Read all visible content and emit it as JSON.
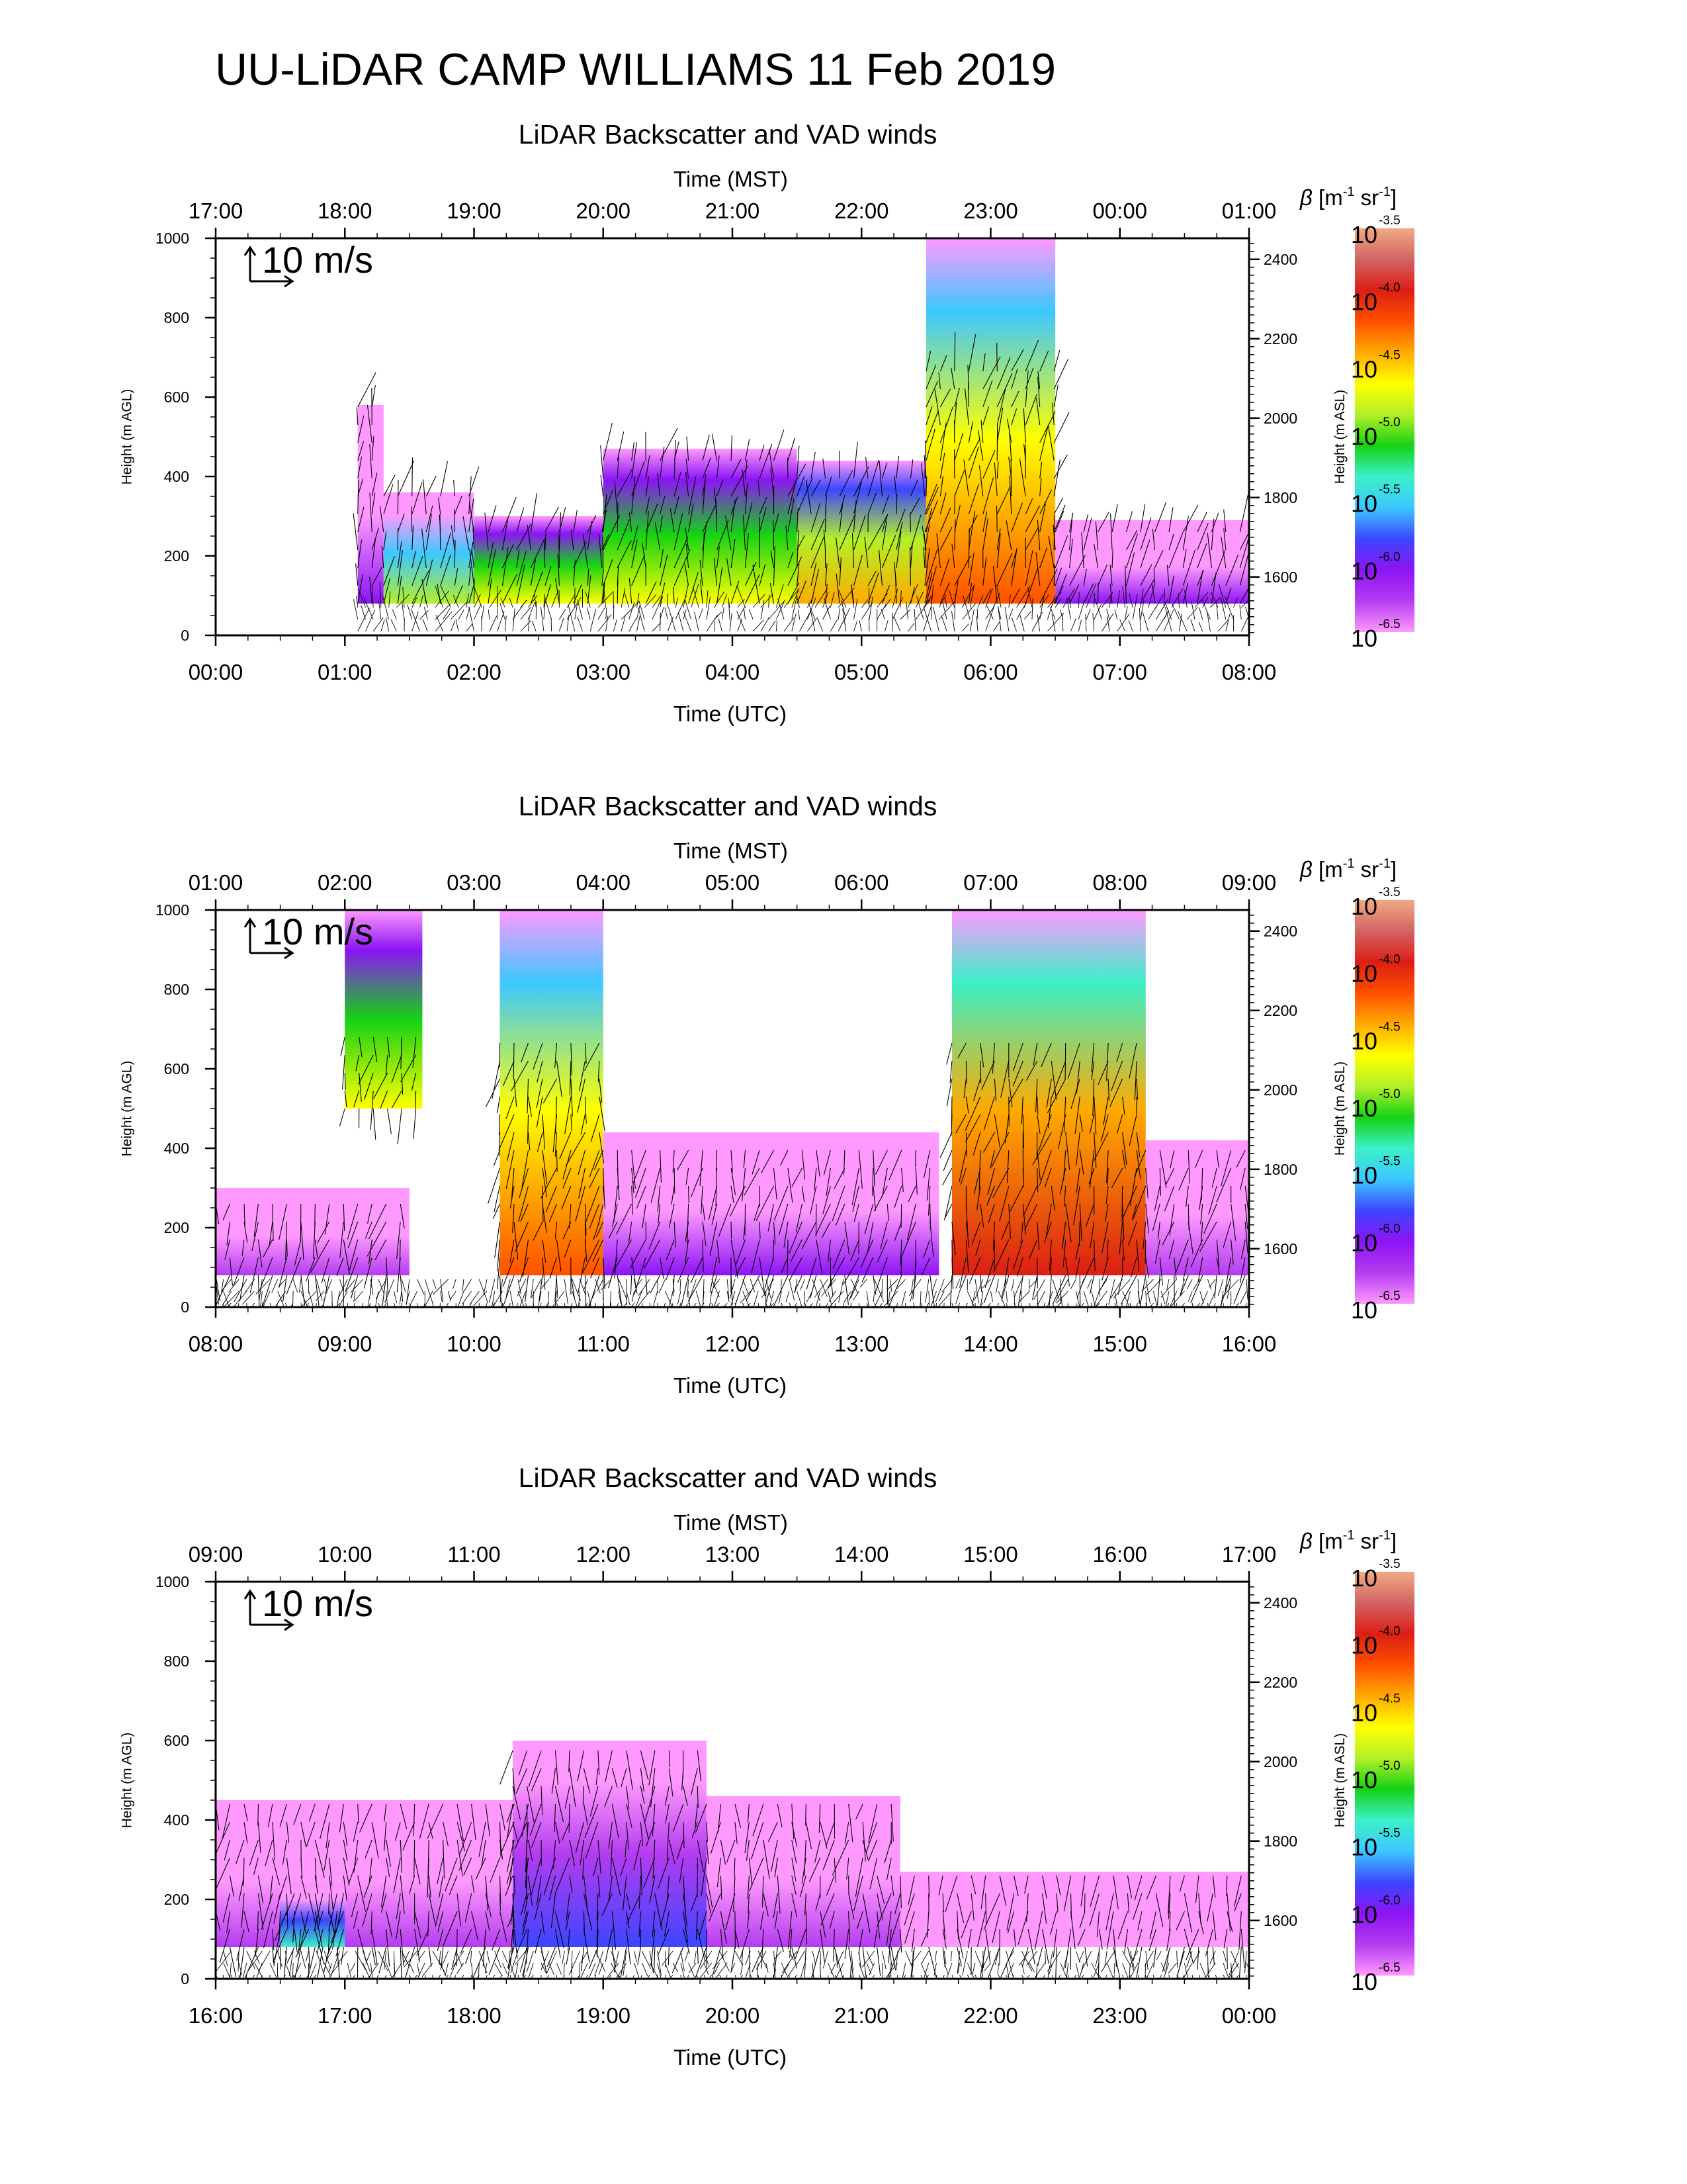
{
  "main_title": "UU-LiDAR CAMP WILLIAMS 11 Feb 2019",
  "colors": {
    "scale": [
      "#ff99ff",
      "#b43cf0",
      "#8c14f5",
      "#3c46ff",
      "#3cc8ff",
      "#3cf0c8",
      "#14d214",
      "#b4f028",
      "#ffff00",
      "#ffaa00",
      "#ff5000",
      "#dc1e14",
      "#d26464",
      "#f0aa82"
    ],
    "arrows": "#000000",
    "frame": "#000000"
  },
  "colorbar": {
    "label_beta": "β",
    "label_units": "[m",
    "exp_m": "-1",
    "label_sr": " sr",
    "exp_sr": "-1",
    "label_close": "]",
    "base": "10",
    "exponents": [
      "-3.5",
      "-4.0",
      "-4.5",
      "-5.0",
      "-5.5",
      "-6.0",
      "-6.5"
    ]
  },
  "panels": [
    {
      "title": "LiDAR Backscatter and VAD winds",
      "top_axis_label": "Time (MST)",
      "bottom_axis_label": "Time (UTC)",
      "left_axis_label": "Height (m AGL)",
      "right_axis_label": "Height (m ASL)",
      "ref_vector_label": "10 m/s",
      "top_ticks": [
        "17:00",
        "18:00",
        "19:00",
        "20:00",
        "21:00",
        "22:00",
        "23:00",
        "00:00",
        "01:00"
      ],
      "bottom_ticks": [
        "00:00",
        "01:00",
        "02:00",
        "03:00",
        "04:00",
        "05:00",
        "06:00",
        "07:00",
        "08:00"
      ],
      "left_ticks": [
        "0",
        "200",
        "400",
        "600",
        "800",
        "1000"
      ],
      "right_ticks": [
        "1600",
        "1800",
        "2000",
        "2200",
        "2400"
      ]
    },
    {
      "title": "LiDAR Backscatter and VAD winds",
      "top_axis_label": "Time (MST)",
      "bottom_axis_label": "Time (UTC)",
      "left_axis_label": "Height (m AGL)",
      "right_axis_label": "Height (m ASL)",
      "ref_vector_label": "10 m/s",
      "top_ticks": [
        "01:00",
        "02:00",
        "03:00",
        "04:00",
        "05:00",
        "06:00",
        "07:00",
        "08:00",
        "09:00"
      ],
      "bottom_ticks": [
        "08:00",
        "09:00",
        "10:00",
        "11:00",
        "12:00",
        "13:00",
        "14:00",
        "15:00",
        "16:00"
      ],
      "left_ticks": [
        "0",
        "200",
        "400",
        "600",
        "800",
        "1000"
      ],
      "right_ticks": [
        "1600",
        "1800",
        "2000",
        "2200",
        "2400"
      ]
    },
    {
      "title": "LiDAR Backscatter and VAD winds",
      "top_axis_label": "Time (MST)",
      "bottom_axis_label": "Time (UTC)",
      "left_axis_label": "Height (m AGL)",
      "right_axis_label": "Height (m ASL)",
      "ref_vector_label": "10 m/s",
      "top_ticks": [
        "09:00",
        "10:00",
        "11:00",
        "12:00",
        "13:00",
        "14:00",
        "15:00",
        "16:00",
        "17:00"
      ],
      "bottom_ticks": [
        "16:00",
        "17:00",
        "18:00",
        "19:00",
        "20:00",
        "21:00",
        "22:00",
        "23:00",
        "00:00"
      ],
      "left_ticks": [
        "0",
        "200",
        "400",
        "600",
        "800",
        "1000"
      ],
      "right_ticks": [
        "1600",
        "1800",
        "2000",
        "2200",
        "2400"
      ]
    }
  ],
  "chart_data": [
    {
      "type": "heatmap",
      "title": "LiDAR Backscatter and VAD winds",
      "xlabel": "Time (UTC)",
      "xlabel_top": "Time (MST)",
      "ylabel": "Height (m AGL)",
      "ylabel_right": "Height (m ASL)",
      "x_range_utc_hours": [
        0,
        8
      ],
      "ylim": [
        0,
        1000
      ],
      "ylim_right": [
        1453,
        2453
      ],
      "colorbar_log10_range": [
        -6.5,
        -3.5
      ],
      "layers": [
        {
          "x_start": 1.1,
          "x_end": 1.3,
          "y0": 80,
          "y1": 580,
          "level": -6.0
        },
        {
          "x_start": 1.3,
          "x_end": 2.0,
          "y0": 80,
          "y1": 360,
          "level": -5.0
        },
        {
          "x_start": 2.0,
          "x_end": 3.0,
          "y0": 80,
          "y1": 300,
          "level": -4.7
        },
        {
          "x_start": 3.0,
          "x_end": 4.5,
          "y0": 80,
          "y1": 470,
          "level": -4.6
        },
        {
          "x_start": 4.5,
          "x_end": 5.5,
          "y0": 80,
          "y1": 440,
          "level": -4.5
        },
        {
          "x_start": 5.5,
          "x_end": 6.5,
          "y0": 80,
          "y1": 1000,
          "level": -4.2
        },
        {
          "x_start": 6.5,
          "x_end": 8.0,
          "y0": 80,
          "y1": 290,
          "level": -6.0
        }
      ],
      "vectors": "VAD wind barbs mainly southerly to south-southwesterly, strong (up to ~15 m/s) from 01:00 to 06:30 UTC, weaker afterwards",
      "reference_vector_ms": 10
    },
    {
      "type": "heatmap",
      "title": "LiDAR Backscatter and VAD winds",
      "xlabel": "Time (UTC)",
      "xlabel_top": "Time (MST)",
      "ylabel": "Height (m AGL)",
      "ylabel_right": "Height (m ASL)",
      "x_range_utc_hours": [
        8,
        16
      ],
      "ylim": [
        0,
        1000
      ],
      "ylim_right": [
        1453,
        2453
      ],
      "colorbar_log10_range": [
        -6.5,
        -3.5
      ],
      "layers": [
        {
          "x_start": 8.0,
          "x_end": 9.5,
          "y0": 80,
          "y1": 300,
          "level": -6.2
        },
        {
          "x_start": 9.0,
          "x_end": 9.6,
          "y0": 500,
          "y1": 1000,
          "level": -4.6
        },
        {
          "x_start": 10.2,
          "x_end": 11.0,
          "y0": 80,
          "y1": 1000,
          "level": -4.2
        },
        {
          "x_start": 11.0,
          "x_end": 13.6,
          "y0": 80,
          "y1": 440,
          "level": -6.1
        },
        {
          "x_start": 13.7,
          "x_end": 15.2,
          "y0": 80,
          "y1": 1000,
          "level": -3.9
        },
        {
          "x_start": 15.2,
          "x_end": 16.0,
          "y0": 80,
          "y1": 420,
          "level": -6.2
        }
      ],
      "vectors": "VAD winds mostly northerly to north-northwesterly, moderate speeds",
      "reference_vector_ms": 10
    },
    {
      "type": "heatmap",
      "title": "LiDAR Backscatter and VAD winds",
      "xlabel": "Time (UTC)",
      "xlabel_top": "Time (MST)",
      "ylabel": "Height (m AGL)",
      "ylabel_right": "Height (m ASL)",
      "x_range_utc_hours": [
        16,
        24
      ],
      "ylim": [
        0,
        1000
      ],
      "ylim_right": [
        1453,
        2453
      ],
      "colorbar_log10_range": [
        -6.5,
        -3.5
      ],
      "layers": [
        {
          "x_start": 16.0,
          "x_end": 18.5,
          "y0": 80,
          "y1": 450,
          "level": -6.3
        },
        {
          "x_start": 16.5,
          "x_end": 17.0,
          "y0": 80,
          "y1": 230,
          "level": -5.3
        },
        {
          "x_start": 18.3,
          "x_end": 19.8,
          "y0": 80,
          "y1": 600,
          "level": -5.7
        },
        {
          "x_start": 19.8,
          "x_end": 21.3,
          "y0": 80,
          "y1": 460,
          "level": -6.3
        },
        {
          "x_start": 21.3,
          "x_end": 24.0,
          "y0": 80,
          "y1": 270,
          "level": -6.4
        }
      ],
      "vectors": "VAD winds mostly northerly, weak near the surface late in the period",
      "reference_vector_ms": 10
    }
  ]
}
